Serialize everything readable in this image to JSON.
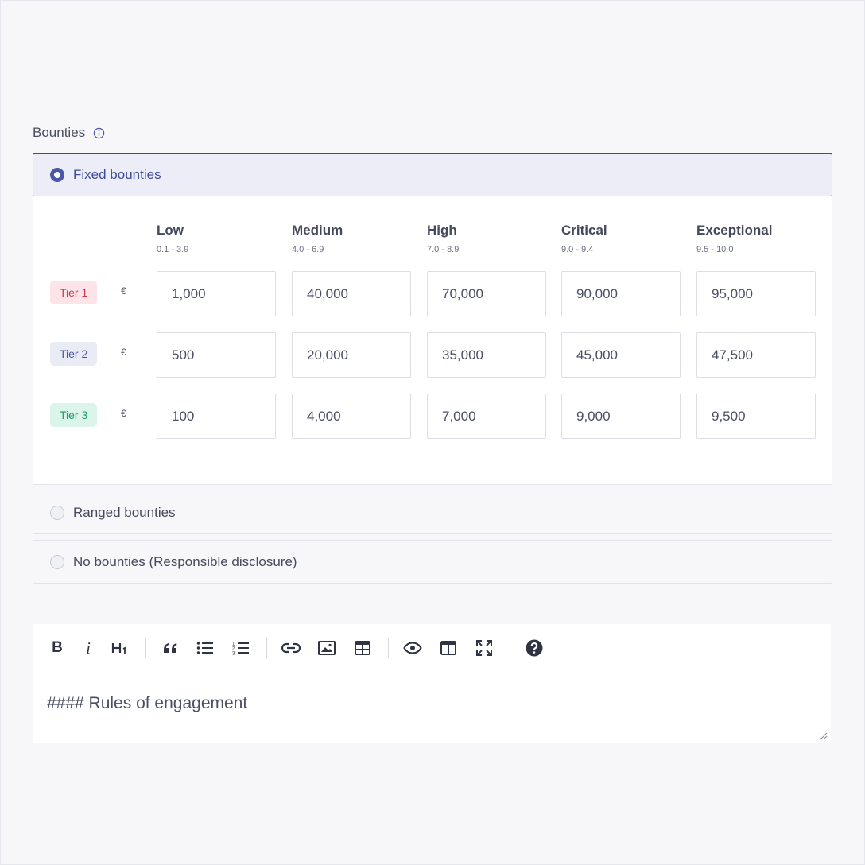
{
  "section": {
    "label": "Bounties"
  },
  "options": {
    "fixed": "Fixed bounties",
    "ranged": "Ranged bounties",
    "none": "No bounties (Responsible disclosure)"
  },
  "severities": [
    {
      "name": "Low",
      "range": "0.1 - 3.9"
    },
    {
      "name": "Medium",
      "range": "4.0 - 6.9"
    },
    {
      "name": "High",
      "range": "7.0 - 8.9"
    },
    {
      "name": "Critical",
      "range": "9.0 - 9.4"
    },
    {
      "name": "Exceptional",
      "range": "9.5 - 10.0"
    }
  ],
  "tiers": [
    {
      "label": "Tier 1",
      "currency": "€",
      "bg": "#fde4e8",
      "fg": "#d6334d",
      "values": [
        "1,000",
        "40,000",
        "70,000",
        "90,000",
        "95,000"
      ]
    },
    {
      "label": "Tier 2",
      "currency": "€",
      "bg": "#eaecf5",
      "fg": "#4b559f",
      "values": [
        "500",
        "20,000",
        "35,000",
        "45,000",
        "47,500"
      ]
    },
    {
      "label": "Tier 3",
      "currency": "€",
      "bg": "#dcf5ea",
      "fg": "#1f9c63",
      "values": [
        "100",
        "4,000",
        "7,000",
        "9,000",
        "9,500"
      ]
    }
  ],
  "editor": {
    "text": "#### Rules of engagement"
  },
  "icons": {
    "bold": "B",
    "italic": "i",
    "heading": "H1",
    "quote": "“",
    "accent": "#4d57a8"
  }
}
